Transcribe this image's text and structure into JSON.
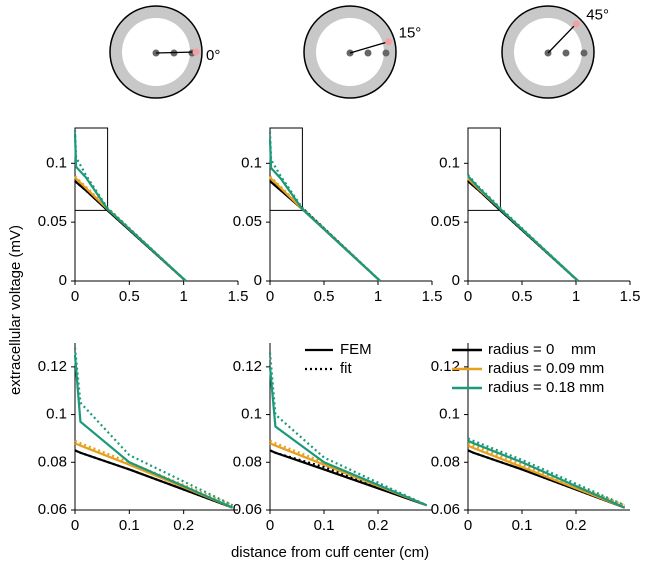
{
  "angles": [
    {
      "value": 0,
      "label": "0°"
    },
    {
      "value": 15,
      "label": "15°"
    },
    {
      "value": 45,
      "label": "45°"
    }
  ],
  "ylabel": "extracellular voltage (mV)",
  "xlabel": "distance from cuff center (cm)",
  "line_styles": [
    "FEM",
    "fit"
  ],
  "chart_data": [
    {
      "type": "line",
      "x": [
        0,
        0.01,
        0.1,
        0.3,
        1.02
      ],
      "xlim": [
        0,
        1.5
      ],
      "ylim": [
        0,
        0.13
      ],
      "xticks": [
        0,
        0.5,
        1,
        1.5
      ],
      "yticks": [
        0,
        0.05,
        0.1
      ],
      "series": [
        {
          "name": "radius = 0    mm",
          "color": "#000000",
          "values": [
            0.085,
            0.084,
            0.077,
            0.06,
            0
          ],
          "fit": [
            0.085,
            0.084,
            0.077,
            0.06,
            0
          ]
        },
        {
          "name": "radius = 0.09 mm",
          "color": "#e6a01e",
          "values": [
            0.088,
            0.087,
            0.079,
            0.061,
            0
          ],
          "fit": [
            0.089,
            0.088,
            0.08,
            0.062,
            0
          ]
        },
        {
          "name": "radius = 0.18 mm",
          "color": "#1a9a7a",
          "values": [
            0.125,
            0.097,
            0.088,
            0.061,
            0
          ],
          "fit": [
            0.128,
            0.105,
            0.09,
            0.062,
            0
          ]
        }
      ]
    },
    {
      "type": "line",
      "x": [
        0,
        0.01,
        0.1,
        0.3,
        1.02
      ],
      "xlim": [
        0,
        1.5
      ],
      "ylim": [
        0,
        0.13
      ],
      "xticks": [
        0,
        0.5,
        1,
        1.5
      ],
      "yticks": [
        0,
        0.05,
        0.1
      ],
      "series": [
        {
          "name": "radius = 0    mm",
          "color": "#000000",
          "values": [
            0.085,
            0.084,
            0.077,
            0.061,
            0
          ],
          "fit": [
            0.085,
            0.084,
            0.077,
            0.062,
            0
          ]
        },
        {
          "name": "radius = 0.09 mm",
          "color": "#e6a01e",
          "values": [
            0.088,
            0.087,
            0.079,
            0.061,
            0
          ],
          "fit": [
            0.089,
            0.088,
            0.08,
            0.062,
            0
          ]
        },
        {
          "name": "radius = 0.18 mm",
          "color": "#1a9a7a",
          "values": [
            0.12,
            0.096,
            0.087,
            0.061,
            0
          ],
          "fit": [
            0.127,
            0.103,
            0.089,
            0.062,
            0
          ]
        }
      ]
    },
    {
      "type": "line",
      "x": [
        0,
        0.01,
        0.1,
        0.3,
        1.02
      ],
      "xlim": [
        0,
        1.5
      ],
      "ylim": [
        0,
        0.13
      ],
      "xticks": [
        0,
        0.5,
        1,
        1.5
      ],
      "yticks": [
        0,
        0.05,
        0.1
      ],
      "series": [
        {
          "name": "radius = 0    mm",
          "color": "#000000",
          "values": [
            0.085,
            0.084,
            0.077,
            0.06,
            0
          ],
          "fit": [
            0.085,
            0.084,
            0.077,
            0.06,
            0
          ]
        },
        {
          "name": "radius = 0.09 mm",
          "color": "#e6a01e",
          "values": [
            0.087,
            0.086,
            0.078,
            0.061,
            0
          ],
          "fit": [
            0.088,
            0.087,
            0.079,
            0.061,
            0
          ]
        },
        {
          "name": "radius = 0.18 mm",
          "color": "#1a9a7a",
          "values": [
            0.089,
            0.088,
            0.079,
            0.061,
            0
          ],
          "fit": [
            0.09,
            0.089,
            0.08,
            0.062,
            0
          ]
        }
      ]
    },
    {
      "type": "line",
      "x": [
        0,
        0.01,
        0.1,
        0.29
      ],
      "xlim": [
        0,
        0.3
      ],
      "ylim": [
        0.06,
        0.13
      ],
      "xticks": [
        0,
        0.1,
        0.2
      ],
      "yticks": [
        0.06,
        0.08,
        0.1,
        0.12
      ],
      "series": [
        {
          "name": "radius = 0    mm",
          "color": "#000000",
          "values": [
            0.085,
            0.084,
            0.077,
            0.061
          ],
          "fit": [
            0.085,
            0.084,
            0.077,
            0.061
          ]
        },
        {
          "name": "radius = 0.09 mm",
          "color": "#e6a01e",
          "values": [
            0.088,
            0.087,
            0.079,
            0.061
          ],
          "fit": [
            0.089,
            0.088,
            0.08,
            0.062
          ]
        },
        {
          "name": "radius = 0.18 mm",
          "color": "#1a9a7a",
          "values": [
            0.125,
            0.097,
            0.08,
            0.061
          ],
          "fit": [
            0.128,
            0.105,
            0.083,
            0.062
          ]
        }
      ]
    },
    {
      "type": "line",
      "x": [
        0,
        0.01,
        0.1,
        0.29
      ],
      "xlim": [
        0,
        0.3
      ],
      "ylim": [
        0.06,
        0.13
      ],
      "xticks": [
        0,
        0.1,
        0.2
      ],
      "yticks": [
        0.06,
        0.08,
        0.1,
        0.12
      ],
      "series": [
        {
          "name": "radius = 0    mm",
          "color": "#000000",
          "values": [
            0.085,
            0.084,
            0.077,
            0.062
          ],
          "fit": [
            0.085,
            0.084,
            0.078,
            0.062
          ]
        },
        {
          "name": "radius = 0.09 mm",
          "color": "#e6a01e",
          "values": [
            0.088,
            0.087,
            0.079,
            0.062
          ],
          "fit": [
            0.089,
            0.088,
            0.08,
            0.062
          ]
        },
        {
          "name": "radius = 0.18 mm",
          "color": "#1a9a7a",
          "values": [
            0.12,
            0.095,
            0.08,
            0.062
          ],
          "fit": [
            0.126,
            0.1,
            0.082,
            0.062
          ]
        }
      ]
    },
    {
      "type": "line",
      "x": [
        0,
        0.01,
        0.1,
        0.29
      ],
      "xlim": [
        0,
        0.3
      ],
      "ylim": [
        0.06,
        0.13
      ],
      "xticks": [
        0,
        0.1,
        0.2
      ],
      "yticks": [
        0.06,
        0.08,
        0.1,
        0.12
      ],
      "series": [
        {
          "name": "radius = 0    mm",
          "color": "#000000",
          "values": [
            0.085,
            0.084,
            0.077,
            0.061
          ],
          "fit": [
            0.085,
            0.084,
            0.077,
            0.061
          ]
        },
        {
          "name": "radius = 0.09 mm",
          "color": "#e6a01e",
          "values": [
            0.087,
            0.086,
            0.078,
            0.061
          ],
          "fit": [
            0.088,
            0.087,
            0.079,
            0.062
          ]
        },
        {
          "name": "radius = 0.18 mm",
          "color": "#1a9a7a",
          "values": [
            0.089,
            0.088,
            0.08,
            0.061
          ],
          "fit": [
            0.09,
            0.089,
            0.081,
            0.062
          ]
        }
      ]
    }
  ]
}
